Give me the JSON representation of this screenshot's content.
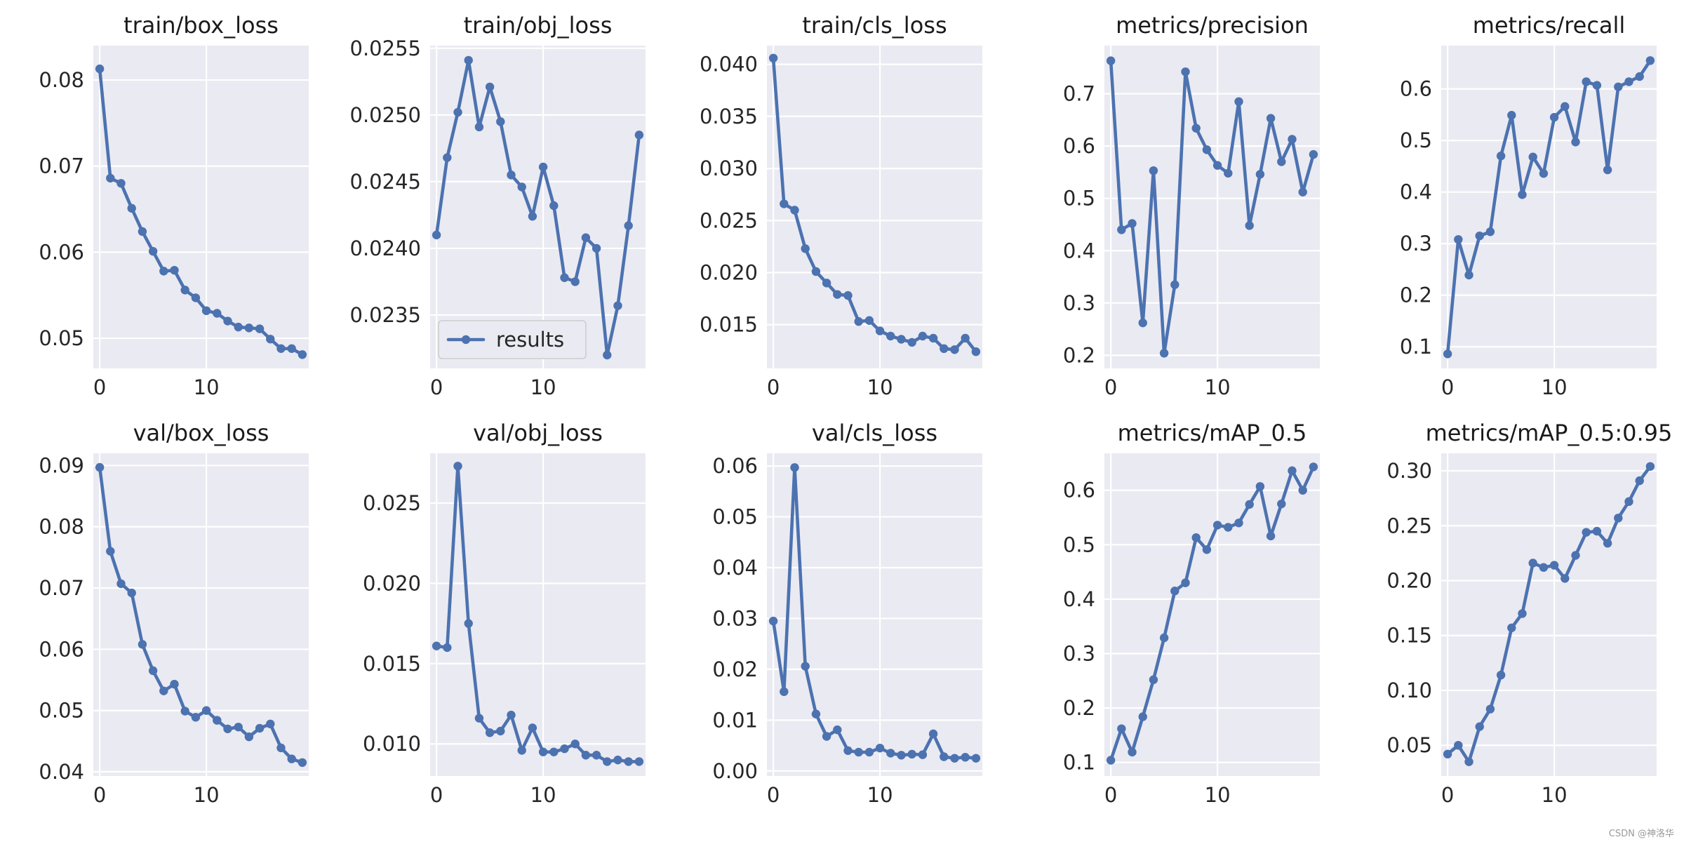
{
  "watermark": "CSDN @神洛华",
  "colors": {
    "series": "#4c72b0",
    "panel_background": "#eaeaf2",
    "grid": "#ffffff"
  },
  "chart_data": [
    {
      "type": "line",
      "title": "train/box_loss",
      "x": [
        0,
        1,
        2,
        3,
        4,
        5,
        6,
        7,
        8,
        9,
        10,
        11,
        12,
        13,
        14,
        15,
        16,
        17,
        18,
        19
      ],
      "y": [
        0.0813,
        0.0686,
        0.068,
        0.0651,
        0.0624,
        0.0601,
        0.0578,
        0.0579,
        0.0556,
        0.0547,
        0.0532,
        0.0529,
        0.052,
        0.0513,
        0.0512,
        0.0511,
        0.0499,
        0.0488,
        0.0488,
        0.0481
      ],
      "ylim": [
        0.0465,
        0.084
      ],
      "yticks": [
        0.05,
        0.06,
        0.07,
        0.08
      ],
      "ytick_labels": [
        "0.05",
        "0.06",
        "0.07",
        "0.08"
      ],
      "xlim": [
        -0.6,
        19.6
      ],
      "xticks": [
        0,
        10
      ],
      "xtick_labels": [
        "0",
        "10"
      ],
      "grid": true
    },
    {
      "type": "line",
      "title": "train/obj_loss",
      "x": [
        0,
        1,
        2,
        3,
        4,
        5,
        6,
        7,
        8,
        9,
        10,
        11,
        12,
        13,
        14,
        15,
        16,
        17,
        18,
        19
      ],
      "y": [
        0.0241,
        0.02468,
        0.02502,
        0.02541,
        0.02491,
        0.02521,
        0.02495,
        0.02455,
        0.02446,
        0.02424,
        0.02461,
        0.02432,
        0.02378,
        0.02375,
        0.02408,
        0.024,
        0.0232,
        0.02357,
        0.02417,
        0.02485
      ],
      "ylim": [
        0.0231,
        0.02552
      ],
      "yticks": [
        0.0235,
        0.024,
        0.0245,
        0.025,
        0.0255
      ],
      "ytick_labels": [
        "0.0235",
        "0.0240",
        "0.0245",
        "0.0250",
        "0.0255"
      ],
      "xlim": [
        -0.6,
        19.6
      ],
      "xticks": [
        0,
        10
      ],
      "xtick_labels": [
        "0",
        "10"
      ],
      "grid": true,
      "legend": {
        "entries": [
          "results"
        ],
        "placement": "lower-left"
      }
    },
    {
      "type": "line",
      "title": "train/cls_loss",
      "x": [
        0,
        1,
        2,
        3,
        4,
        5,
        6,
        7,
        8,
        9,
        10,
        11,
        12,
        13,
        14,
        15,
        16,
        17,
        18,
        19
      ],
      "y": [
        0.0406,
        0.0266,
        0.026,
        0.0223,
        0.0201,
        0.019,
        0.0179,
        0.0178,
        0.0153,
        0.0154,
        0.0144,
        0.0139,
        0.0136,
        0.0133,
        0.0139,
        0.0137,
        0.0127,
        0.0126,
        0.0137,
        0.0124
      ],
      "ylim": [
        0.0108,
        0.0418
      ],
      "yticks": [
        0.015,
        0.02,
        0.025,
        0.03,
        0.035,
        0.04
      ],
      "ytick_labels": [
        "0.015",
        "0.020",
        "0.025",
        "0.030",
        "0.035",
        "0.040"
      ],
      "xlim": [
        -0.6,
        19.6
      ],
      "xticks": [
        0,
        10
      ],
      "xtick_labels": [
        "0",
        "10"
      ],
      "grid": true
    },
    {
      "type": "line",
      "title": "metrics/precision",
      "x": [
        0,
        1,
        2,
        3,
        4,
        5,
        6,
        7,
        8,
        9,
        10,
        11,
        12,
        13,
        14,
        15,
        16,
        17,
        18,
        19
      ],
      "y": [
        0.763,
        0.44,
        0.452,
        0.262,
        0.553,
        0.204,
        0.335,
        0.742,
        0.634,
        0.593,
        0.563,
        0.548,
        0.685,
        0.448,
        0.546,
        0.653,
        0.57,
        0.613,
        0.512,
        0.584
      ],
      "ylim": [
        0.175,
        0.792
      ],
      "yticks": [
        0.2,
        0.3,
        0.4,
        0.5,
        0.6,
        0.7
      ],
      "ytick_labels": [
        "0.2",
        "0.3",
        "0.4",
        "0.5",
        "0.6",
        "0.7"
      ],
      "xlim": [
        -0.6,
        19.6
      ],
      "xticks": [
        0,
        10
      ],
      "xtick_labels": [
        "0",
        "10"
      ],
      "grid": true
    },
    {
      "type": "line",
      "title": "metrics/recall",
      "x": [
        0,
        1,
        2,
        3,
        4,
        5,
        6,
        7,
        8,
        9,
        10,
        11,
        12,
        13,
        14,
        15,
        16,
        17,
        18,
        19
      ],
      "y": [
        0.086,
        0.308,
        0.239,
        0.315,
        0.323,
        0.47,
        0.549,
        0.395,
        0.468,
        0.436,
        0.545,
        0.566,
        0.497,
        0.614,
        0.607,
        0.443,
        0.604,
        0.614,
        0.624,
        0.655
      ],
      "ylim": [
        0.058,
        0.684
      ],
      "yticks": [
        0.1,
        0.2,
        0.3,
        0.4,
        0.5,
        0.6
      ],
      "ytick_labels": [
        "0.1",
        "0.2",
        "0.3",
        "0.4",
        "0.5",
        "0.6"
      ],
      "xlim": [
        -0.6,
        19.6
      ],
      "xticks": [
        0,
        10
      ],
      "xtick_labels": [
        "0",
        "10"
      ],
      "grid": true
    },
    {
      "type": "line",
      "title": "val/box_loss",
      "x": [
        0,
        1,
        2,
        3,
        4,
        5,
        6,
        7,
        8,
        9,
        10,
        11,
        12,
        13,
        14,
        15,
        16,
        17,
        18,
        19
      ],
      "y": [
        0.0897,
        0.076,
        0.0707,
        0.0692,
        0.0608,
        0.0565,
        0.0532,
        0.0543,
        0.0499,
        0.0489,
        0.05,
        0.0484,
        0.047,
        0.0473,
        0.0457,
        0.0471,
        0.0478,
        0.0439,
        0.0421,
        0.0415
      ],
      "ylim": [
        0.0393,
        0.092
      ],
      "yticks": [
        0.04,
        0.05,
        0.06,
        0.07,
        0.08,
        0.09
      ],
      "ytick_labels": [
        "0.04",
        "0.05",
        "0.06",
        "0.07",
        "0.08",
        "0.09"
      ],
      "xlim": [
        -0.6,
        19.6
      ],
      "xticks": [
        0,
        10
      ],
      "xtick_labels": [
        "0",
        "10"
      ],
      "grid": true
    },
    {
      "type": "line",
      "title": "val/obj_loss",
      "x": [
        0,
        1,
        2,
        3,
        4,
        5,
        6,
        7,
        8,
        9,
        10,
        11,
        12,
        13,
        14,
        15,
        16,
        17,
        18,
        19
      ],
      "y": [
        0.0161,
        0.016,
        0.0273,
        0.0175,
        0.0116,
        0.0107,
        0.0108,
        0.0118,
        0.0096,
        0.011,
        0.0095,
        0.0095,
        0.0097,
        0.01,
        0.0093,
        0.0093,
        0.0089,
        0.009,
        0.0089,
        0.0089
      ],
      "ylim": [
        0.008,
        0.0281
      ],
      "yticks": [
        0.01,
        0.015,
        0.02,
        0.025
      ],
      "ytick_labels": [
        "0.010",
        "0.015",
        "0.020",
        "0.025"
      ],
      "xlim": [
        -0.6,
        19.6
      ],
      "xticks": [
        0,
        10
      ],
      "xtick_labels": [
        "0",
        "10"
      ],
      "grid": true
    },
    {
      "type": "line",
      "title": "val/cls_loss",
      "x": [
        0,
        1,
        2,
        3,
        4,
        5,
        6,
        7,
        8,
        9,
        10,
        11,
        12,
        13,
        14,
        15,
        16,
        17,
        18,
        19
      ],
      "y": [
        0.0295,
        0.0156,
        0.0597,
        0.0206,
        0.0112,
        0.0068,
        0.0081,
        0.004,
        0.0037,
        0.0037,
        0.0045,
        0.0035,
        0.0031,
        0.0033,
        0.0032,
        0.0073,
        0.0028,
        0.0025,
        0.0027,
        0.0025
      ],
      "ylim": [
        -0.001,
        0.0625
      ],
      "yticks": [
        0,
        0.01,
        0.02,
        0.03,
        0.04,
        0.05,
        0.06
      ],
      "ytick_labels": [
        "0.00",
        "0.01",
        "0.02",
        "0.03",
        "0.04",
        "0.05",
        "0.06"
      ],
      "xlim": [
        -0.6,
        19.6
      ],
      "xticks": [
        0,
        10
      ],
      "xtick_labels": [
        "0",
        "10"
      ],
      "grid": true
    },
    {
      "type": "line",
      "title": "metrics/mAP_0.5",
      "x": [
        0,
        1,
        2,
        3,
        4,
        5,
        6,
        7,
        8,
        9,
        10,
        11,
        12,
        13,
        14,
        15,
        16,
        17,
        18,
        19
      ],
      "y": [
        0.104,
        0.162,
        0.119,
        0.184,
        0.252,
        0.329,
        0.415,
        0.43,
        0.513,
        0.491,
        0.536,
        0.532,
        0.54,
        0.574,
        0.607,
        0.516,
        0.575,
        0.636,
        0.6,
        0.643
      ],
      "ylim": [
        0.075,
        0.668
      ],
      "yticks": [
        0.1,
        0.2,
        0.3,
        0.4,
        0.5,
        0.6
      ],
      "ytick_labels": [
        "0.1",
        "0.2",
        "0.3",
        "0.4",
        "0.5",
        "0.6"
      ],
      "xlim": [
        -0.6,
        19.6
      ],
      "xticks": [
        0,
        10
      ],
      "xtick_labels": [
        "0",
        "10"
      ],
      "grid": true
    },
    {
      "type": "line",
      "title": "metrics/mAP_0.5:0.95",
      "x": [
        0,
        1,
        2,
        3,
        4,
        5,
        6,
        7,
        8,
        9,
        10,
        11,
        12,
        13,
        14,
        15,
        16,
        17,
        18,
        19
      ],
      "y": [
        0.042,
        0.05,
        0.035,
        0.067,
        0.083,
        0.114,
        0.157,
        0.17,
        0.216,
        0.212,
        0.214,
        0.202,
        0.223,
        0.244,
        0.245,
        0.234,
        0.257,
        0.272,
        0.291,
        0.304
      ],
      "ylim": [
        0.022,
        0.316
      ],
      "yticks": [
        0.05,
        0.1,
        0.15,
        0.2,
        0.25,
        0.3
      ],
      "ytick_labels": [
        "0.05",
        "0.10",
        "0.15",
        "0.20",
        "0.25",
        "0.30"
      ],
      "xlim": [
        -0.6,
        19.6
      ],
      "xticks": [
        0,
        10
      ],
      "xtick_labels": [
        "0",
        "10"
      ],
      "grid": true
    }
  ]
}
